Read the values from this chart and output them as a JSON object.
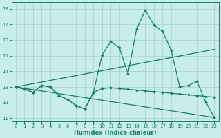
{
  "xlabel": "Humidex (Indice chaleur)",
  "xlim": [
    -0.5,
    23.5
  ],
  "ylim": [
    10.8,
    18.4
  ],
  "yticks": [
    11,
    12,
    13,
    14,
    15,
    16,
    17,
    18
  ],
  "xticks": [
    0,
    1,
    2,
    3,
    4,
    5,
    6,
    7,
    8,
    9,
    10,
    11,
    12,
    13,
    14,
    15,
    16,
    17,
    18,
    19,
    20,
    21,
    22,
    23
  ],
  "bg_color": "#c8eeea",
  "grid_color": "#b0d8d4",
  "line_color": "#1a7a6e",
  "line1_x": [
    0,
    1,
    2,
    3,
    4,
    5,
    6,
    7,
    8,
    9,
    10,
    11,
    12,
    13,
    14,
    15,
    16,
    17,
    18,
    19,
    20,
    21,
    22,
    23
  ],
  "line1_y": [
    13.0,
    12.85,
    12.65,
    13.1,
    13.0,
    12.45,
    12.2,
    11.8,
    11.6,
    12.65,
    15.05,
    15.9,
    15.5,
    13.85,
    16.7,
    17.9,
    16.95,
    16.55,
    15.35,
    13.0,
    13.1,
    13.35,
    12.05,
    11.05
  ],
  "line2_x": [
    0,
    23
  ],
  "line2_y": [
    13.0,
    15.4
  ],
  "line3_x": [
    0,
    23
  ],
  "line3_y": [
    13.0,
    11.05
  ],
  "line4_x": [
    0,
    1,
    2,
    3,
    4,
    5,
    6,
    7,
    8,
    9,
    10,
    11,
    12,
    13,
    14,
    15,
    16,
    17,
    18,
    19,
    20,
    21,
    22,
    23
  ],
  "line4_y": [
    13.0,
    12.9,
    12.65,
    13.1,
    13.0,
    12.45,
    12.2,
    11.8,
    11.6,
    12.65,
    12.9,
    12.95,
    12.9,
    12.85,
    12.8,
    12.75,
    12.7,
    12.65,
    12.6,
    12.55,
    12.5,
    12.45,
    12.4,
    12.35
  ]
}
